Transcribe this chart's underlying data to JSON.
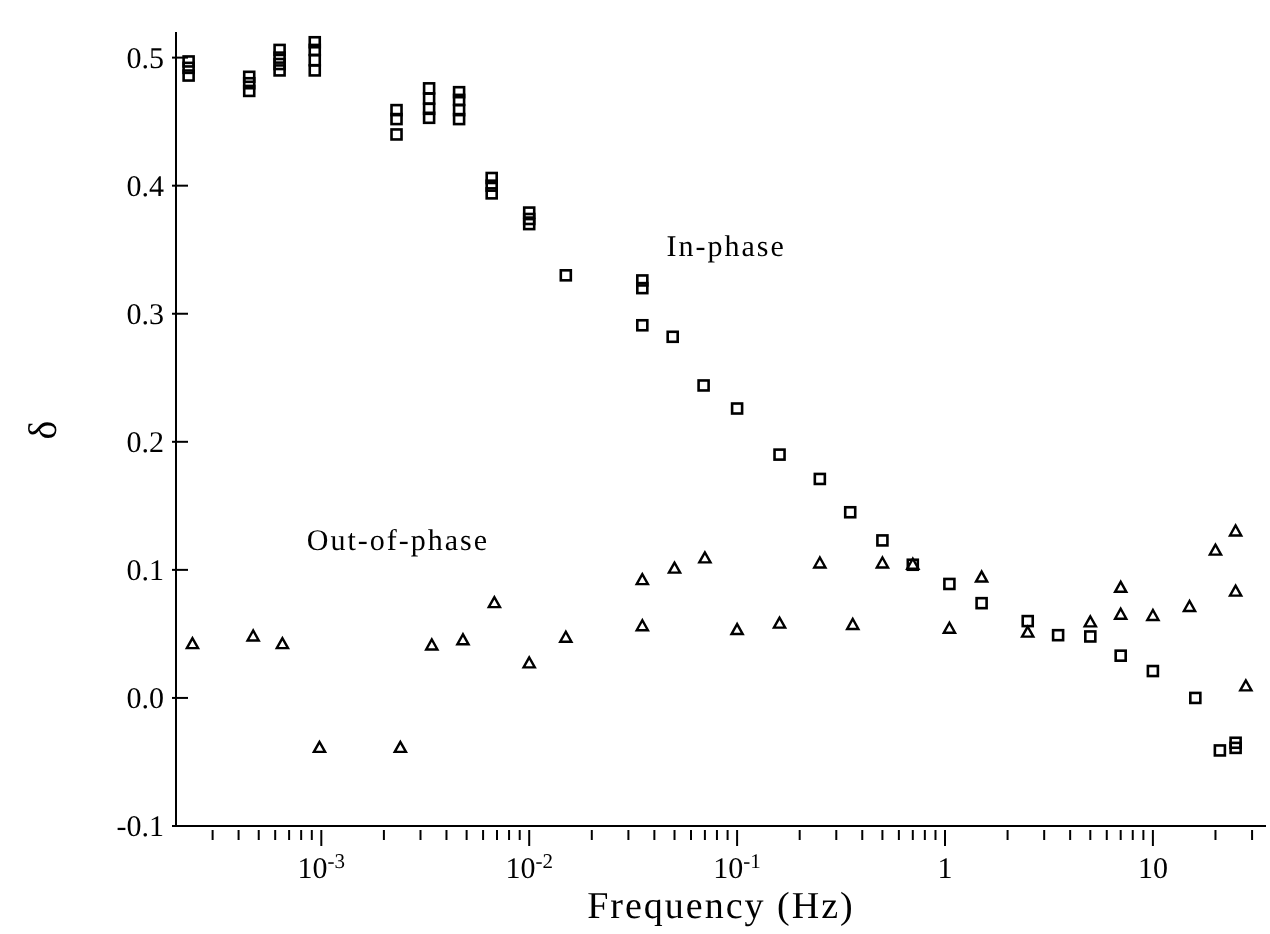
{
  "chart_data": {
    "type": "scatter",
    "xlabel": "Frequency (Hz)",
    "ylabel": "δ",
    "log": "x",
    "grid": false,
    "legend": false,
    "xlim": [
      0.0002,
      35
    ],
    "xticks": [
      {
        "value": 0.0003,
        "label": null
      },
      {
        "value": 0.0004,
        "label": null
      },
      {
        "value": 0.0005,
        "label": null
      },
      {
        "value": 0.0006,
        "label": null
      },
      {
        "value": 0.0007,
        "label": null
      },
      {
        "value": 0.0008,
        "label": null
      },
      {
        "value": 0.0009,
        "label": null
      },
      {
        "value": 0.001,
        "label": "10$^{-3}$"
      },
      {
        "value": 0.002,
        "label": null
      },
      {
        "value": 0.003,
        "label": null
      },
      {
        "value": 0.004,
        "label": null
      },
      {
        "value": 0.005,
        "label": null
      },
      {
        "value": 0.006,
        "label": null
      },
      {
        "value": 0.007,
        "label": null
      },
      {
        "value": 0.008,
        "label": null
      },
      {
        "value": 0.009,
        "label": null
      },
      {
        "value": 0.01,
        "label": "10$^{-2}$"
      },
      {
        "value": 0.02,
        "label": null
      },
      {
        "value": 0.03,
        "label": null
      },
      {
        "value": 0.04,
        "label": null
      },
      {
        "value": 0.05,
        "label": null
      },
      {
        "value": 0.06,
        "label": null
      },
      {
        "value": 0.07,
        "label": null
      },
      {
        "value": 0.08,
        "label": null
      },
      {
        "value": 0.09,
        "label": null
      },
      {
        "value": 0.1,
        "label": "10$^{-1}$"
      },
      {
        "value": 0.2,
        "label": null
      },
      {
        "value": 0.3,
        "label": null
      },
      {
        "value": 0.4,
        "label": null
      },
      {
        "value": 0.5,
        "label": null
      },
      {
        "value": 0.6,
        "label": null
      },
      {
        "value": 0.7,
        "label": null
      },
      {
        "value": 0.8,
        "label": null
      },
      {
        "value": 0.9,
        "label": null
      },
      {
        "value": 1,
        "label": "1"
      },
      {
        "value": 2,
        "label": null
      },
      {
        "value": 3,
        "label": null
      },
      {
        "value": 4,
        "label": null
      },
      {
        "value": 5,
        "label": null
      },
      {
        "value": 6,
        "label": null
      },
      {
        "value": 7,
        "label": null
      },
      {
        "value": 8,
        "label": null
      },
      {
        "value": 9,
        "label": null
      },
      {
        "value": 10,
        "label": "10"
      },
      {
        "value": 20,
        "label": null
      },
      {
        "value": 30,
        "label": null
      }
    ],
    "ylim": [
      -0.1,
      0.52
    ],
    "yticks": [
      -0.1,
      {
        "value": 0,
        "label": "0.0"
      },
      0.1,
      0.2,
      0.3,
      0.4,
      0.5
    ],
    "series": [
      {
        "name": "In-phase",
        "color": "#000000",
        "marker": "square",
        "x": [
          0.00023,
          0.00023,
          0.00023,
          0.00045,
          0.00045,
          0.00045,
          0.00063,
          0.00063,
          0.00063,
          0.00063,
          0.00093,
          0.00093,
          0.00093,
          0.00093,
          0.0023,
          0.0023,
          0.0023,
          0.0033,
          0.0033,
          0.0033,
          0.0033,
          0.0046,
          0.0046,
          0.0046,
          0.0046,
          0.0066,
          0.0066,
          0.0066,
          0.01,
          0.01,
          0.01,
          0.015,
          0.035,
          0.035,
          0.035,
          0.049,
          0.069,
          0.1,
          0.16,
          0.25,
          0.35,
          0.5,
          0.7,
          1.05,
          1.5,
          2.5,
          3.5,
          5,
          7,
          10,
          16,
          21,
          25,
          25
        ],
        "values": [
          0.497,
          0.492,
          0.486,
          0.485,
          0.48,
          0.474,
          0.506,
          0.5,
          0.495,
          0.49,
          0.512,
          0.506,
          0.498,
          0.49,
          0.459,
          0.452,
          0.44,
          0.476,
          0.468,
          0.46,
          0.453,
          0.473,
          0.467,
          0.459,
          0.452,
          0.406,
          0.4,
          0.394,
          0.379,
          0.374,
          0.37,
          0.33,
          0.326,
          0.32,
          0.291,
          0.282,
          0.244,
          0.226,
          0.19,
          0.171,
          0.145,
          0.123,
          0.104,
          0.089,
          0.074,
          0.06,
          0.049,
          0.048,
          0.033,
          0.021,
          0.0,
          -0.041,
          -0.035,
          -0.039
        ]
      },
      {
        "name": "Out-of-phase",
        "color": "#000000",
        "marker": "triangle",
        "x": [
          0.00024,
          0.00047,
          0.00065,
          0.00098,
          0.0024,
          0.0034,
          0.0048,
          0.0068,
          0.01,
          0.015,
          0.035,
          0.035,
          0.05,
          0.07,
          0.1,
          0.16,
          0.25,
          0.36,
          0.5,
          0.7,
          1.05,
          1.5,
          2.5,
          5,
          7,
          7,
          10,
          15,
          20,
          25,
          25,
          28
        ],
        "values": [
          0.042,
          0.048,
          0.042,
          -0.039,
          -0.039,
          0.041,
          0.045,
          0.074,
          0.027,
          0.047,
          0.092,
          0.056,
          0.101,
          0.109,
          0.053,
          0.058,
          0.105,
          0.057,
          0.105,
          0.104,
          0.054,
          0.094,
          0.051,
          0.059,
          0.086,
          0.065,
          0.064,
          0.071,
          0.115,
          0.13,
          0.083,
          0.009
        ]
      }
    ]
  }
}
